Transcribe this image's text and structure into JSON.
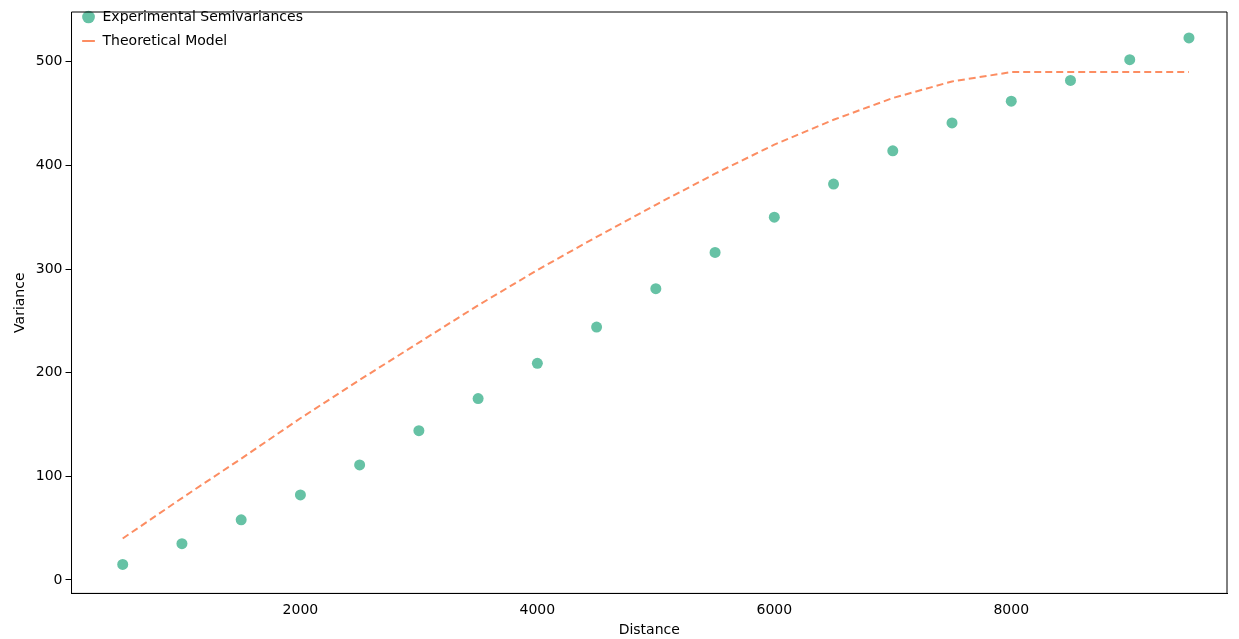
{
  "chart_data": {
    "type": "scatter",
    "xlabel": "Distance",
    "ylabel": "Variance",
    "xlim": [
      68,
      9821
    ],
    "ylim": [
      -13,
      548
    ],
    "xticks": [
      2000,
      4000,
      6000,
      8000
    ],
    "yticks": [
      0,
      100,
      200,
      300,
      400,
      500
    ],
    "grid": false,
    "legend": "top left",
    "series": [
      {
        "name": "Experimental Semivariances",
        "color": "#66c2a5",
        "marker": "circle",
        "x": [
          500,
          1000,
          1500,
          2000,
          2500,
          3000,
          3500,
          4000,
          4500,
          5000,
          5500,
          6000,
          6500,
          7000,
          7500,
          8000,
          8500,
          9000,
          9500
        ],
        "values": [
          15,
          35,
          58,
          82,
          111,
          144,
          175,
          209,
          244,
          281,
          316,
          350,
          382,
          414,
          441,
          462,
          482,
          502,
          523
        ]
      },
      {
        "name": "Theoretical Model",
        "type": "line",
        "color": "#fc8d62",
        "marker": "none",
        "line_style": "dashed",
        "x": [
          500,
          1000,
          1500,
          2000,
          2500,
          3000,
          3500,
          4000,
          4500,
          5000,
          5500,
          6000,
          6500,
          7000,
          7500,
          8000,
          8500,
          9000,
          9500
        ],
        "values": [
          40,
          79,
          117,
          156,
          193,
          229,
          265,
          299,
          331,
          362,
          392,
          420,
          444,
          465,
          481,
          490,
          490,
          490,
          490
        ]
      }
    ]
  }
}
